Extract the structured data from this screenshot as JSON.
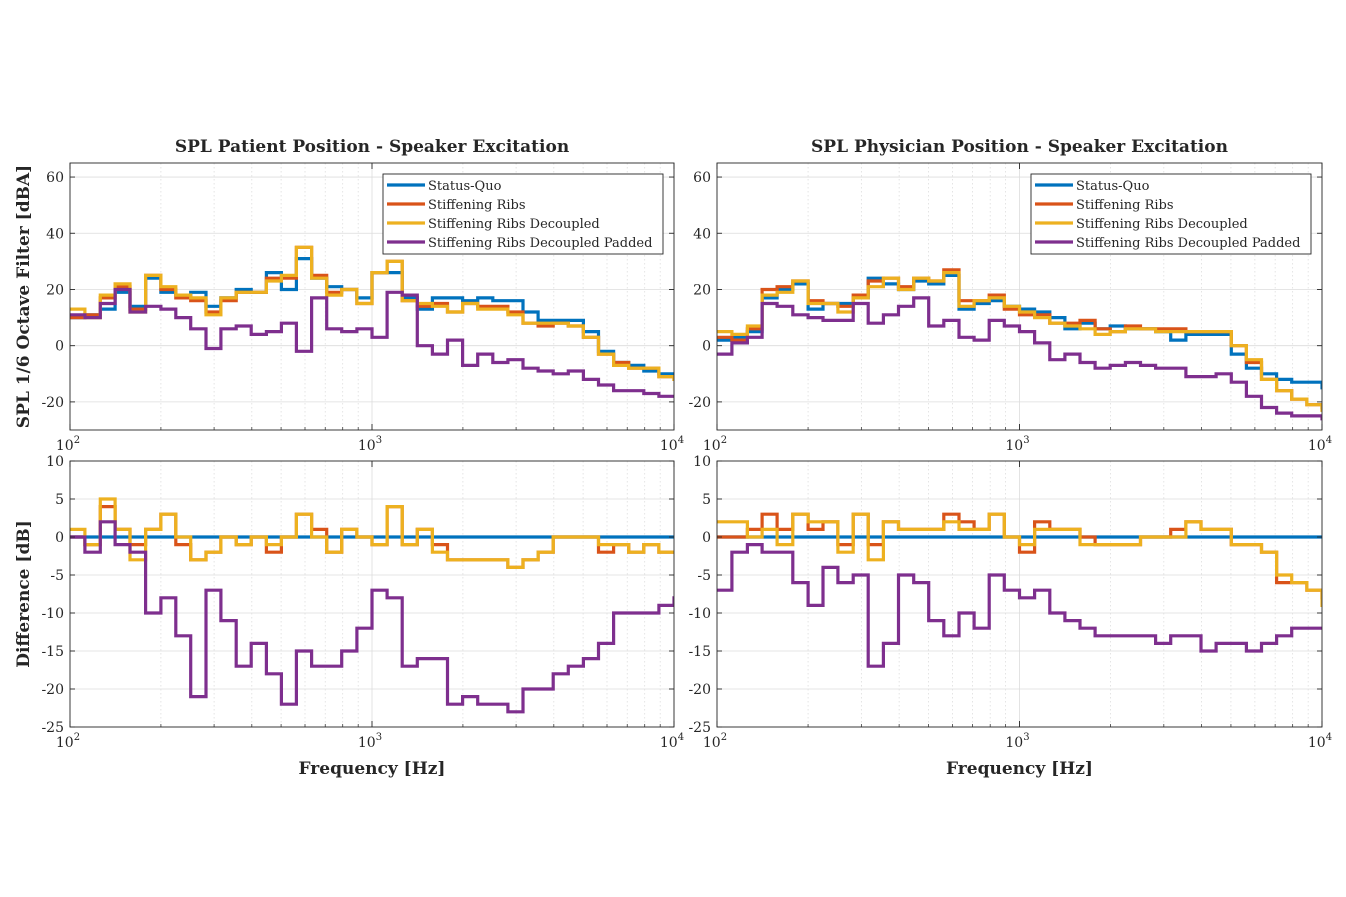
{
  "series_styles": [
    {
      "name": "Status-Quo",
      "color": "#0072BD"
    },
    {
      "name": "Stiffening Ribs",
      "color": "#D95319"
    },
    {
      "name": "Stiffening Ribs Decoupled",
      "color": "#EDB120"
    },
    {
      "name": "Stiffening Ribs Decoupled Padded",
      "color": "#7E2F8E"
    }
  ],
  "chart_data": [
    {
      "type": "line",
      "panel": "top-left",
      "title": "SPL Patient Position - Speaker Excitation",
      "xlabel": "",
      "ylabel": "SPL 1/6 Octave Filter [dBA]",
      "xscale": "log",
      "xlim": [
        100,
        10000
      ],
      "ylim": [
        -30,
        65
      ],
      "yticks": [
        -20,
        0,
        20,
        40,
        60
      ],
      "grid": true,
      "legend": "top-right",
      "x": [
        100,
        112,
        126,
        141,
        158,
        178,
        200,
        224,
        251,
        282,
        316,
        355,
        398,
        447,
        501,
        562,
        631,
        708,
        794,
        891,
        1000,
        1122,
        1259,
        1413,
        1585,
        1778,
        1995,
        2239,
        2512,
        2818,
        3162,
        3548,
        3981,
        4467,
        5012,
        5623,
        6310,
        7079,
        7943,
        8913,
        10000
      ],
      "series": [
        {
          "name": "Status-Quo",
          "values": [
            10,
            11,
            13,
            19,
            14,
            24,
            19,
            18,
            19,
            14,
            17,
            20,
            19,
            26,
            20,
            31,
            24,
            21,
            20,
            17,
            26,
            26,
            17,
            13,
            17,
            17,
            16,
            17,
            16,
            16,
            12,
            9,
            9,
            9,
            5,
            -2,
            -6,
            -7,
            -9,
            -10,
            -10
          ]
        },
        {
          "name": "Stiffening Ribs",
          "values": [
            10,
            11,
            17,
            21,
            13,
            25,
            20,
            17,
            16,
            12,
            16,
            19,
            19,
            24,
            24,
            35,
            25,
            19,
            20,
            15,
            26,
            30,
            16,
            14,
            15,
            12,
            15,
            14,
            14,
            12,
            8,
            7,
            8,
            7,
            3,
            -3,
            -6,
            -8,
            -8,
            -11,
            -12
          ]
        },
        {
          "name": "Stiffening Ribs Decoupled",
          "values": [
            13,
            10,
            18,
            22,
            12,
            25,
            21,
            18,
            17,
            11,
            17,
            19,
            19,
            23,
            25,
            35,
            24,
            18,
            20,
            15,
            26,
            30,
            16,
            15,
            14,
            12,
            15,
            13,
            13,
            11,
            8,
            8,
            8,
            7,
            3,
            -3,
            -7,
            -8,
            -8,
            -11,
            -12
          ]
        },
        {
          "name": "Stiffening Ribs Decoupled Padded",
          "values": [
            11,
            10,
            15,
            20,
            12,
            14,
            13,
            10,
            6,
            -1,
            6,
            7,
            4,
            5,
            8,
            -2,
            17,
            6,
            5,
            6,
            3,
            19,
            18,
            0,
            -3,
            2,
            -7,
            -3,
            -6,
            -5,
            -8,
            -9,
            -10,
            -9,
            -12,
            -14,
            -16,
            -16,
            -17,
            -18,
            -18
          ]
        }
      ]
    },
    {
      "type": "line",
      "panel": "top-right",
      "title": "SPL Physician Position - Speaker Excitation",
      "xlabel": "",
      "ylabel": "",
      "xscale": "log",
      "xlim": [
        100,
        10000
      ],
      "ylim": [
        -30,
        65
      ],
      "yticks": [
        -20,
        0,
        20,
        40,
        60
      ],
      "grid": true,
      "legend": "top-right",
      "x": [
        100,
        112,
        126,
        141,
        158,
        178,
        200,
        224,
        251,
        282,
        316,
        355,
        398,
        447,
        501,
        562,
        631,
        708,
        794,
        891,
        1000,
        1122,
        1259,
        1413,
        1585,
        1778,
        1995,
        2239,
        2512,
        2818,
        3162,
        3548,
        3981,
        4467,
        5012,
        5623,
        6310,
        7079,
        7943,
        8913,
        10000
      ],
      "series": [
        {
          "name": "Status-Quo",
          "values": [
            2,
            3,
            5,
            17,
            20,
            22,
            13,
            15,
            15,
            17,
            24,
            22,
            20,
            23,
            22,
            25,
            13,
            15,
            16,
            14,
            13,
            12,
            10,
            6,
            8,
            6,
            7,
            6,
            6,
            5,
            2,
            4,
            4,
            4,
            -3,
            -8,
            -10,
            -12,
            -13,
            -13,
            -15
          ]
        },
        {
          "name": "Stiffening Ribs",
          "values": [
            3,
            2,
            6,
            20,
            21,
            23,
            16,
            15,
            14,
            18,
            23,
            24,
            21,
            24,
            23,
            27,
            16,
            16,
            18,
            13,
            11,
            11,
            8,
            8,
            9,
            6,
            5,
            7,
            6,
            6,
            6,
            5,
            5,
            5,
            0,
            -6,
            -12,
            -16,
            -19,
            -21,
            -22
          ]
        },
        {
          "name": "Stiffening Ribs Decoupled",
          "values": [
            5,
            4,
            7,
            18,
            19,
            23,
            15,
            15,
            12,
            17,
            21,
            24,
            20,
            24,
            23,
            26,
            14,
            16,
            17,
            14,
            12,
            10,
            8,
            7,
            6,
            4,
            5,
            6,
            6,
            5,
            5,
            5,
            5,
            5,
            0,
            -5,
            -12,
            -16,
            -19,
            -21,
            -23
          ]
        },
        {
          "name": "Stiffening Ribs Decoupled Padded",
          "values": [
            -3,
            1,
            3,
            15,
            14,
            11,
            10,
            9,
            9,
            15,
            8,
            11,
            14,
            17,
            7,
            9,
            3,
            2,
            9,
            7,
            5,
            1,
            -5,
            -3,
            -6,
            -8,
            -7,
            -6,
            -7,
            -8,
            -8,
            -11,
            -11,
            -10,
            -13,
            -18,
            -22,
            -24,
            -25,
            -25,
            -26
          ]
        }
      ]
    },
    {
      "type": "line",
      "panel": "bottom-left",
      "title": "",
      "xlabel": "Frequency [Hz]",
      "ylabel": "Difference [dB]",
      "xscale": "log",
      "xlim": [
        100,
        10000
      ],
      "ylim": [
        -25,
        10
      ],
      "yticks": [
        -25,
        -20,
        -15,
        -10,
        -5,
        0,
        5,
        10
      ],
      "grid": true,
      "legend": "none",
      "x": [
        100,
        112,
        126,
        141,
        158,
        178,
        200,
        224,
        251,
        282,
        316,
        355,
        398,
        447,
        501,
        562,
        631,
        708,
        794,
        891,
        1000,
        1122,
        1259,
        1413,
        1585,
        1778,
        1995,
        2239,
        2512,
        2818,
        3162,
        3548,
        3981,
        4467,
        5012,
        5623,
        6310,
        7079,
        7943,
        8913,
        10000
      ],
      "series": [
        {
          "name": "Status-Quo",
          "values": [
            0,
            0,
            0,
            0,
            0,
            0,
            0,
            0,
            0,
            0,
            0,
            0,
            0,
            0,
            0,
            0,
            0,
            0,
            0,
            0,
            0,
            0,
            0,
            0,
            0,
            0,
            0,
            0,
            0,
            0,
            0,
            0,
            0,
            0,
            0,
            0,
            0,
            0,
            0,
            0,
            0
          ]
        },
        {
          "name": "Stiffening Ribs",
          "values": [
            0,
            -1,
            4,
            1,
            -1,
            1,
            3,
            -1,
            -3,
            -2,
            0,
            -1,
            0,
            -2,
            0,
            3,
            1,
            -2,
            1,
            0,
            -1,
            4,
            -1,
            1,
            -1,
            -3,
            -3,
            -3,
            -3,
            -4,
            -3,
            -2,
            0,
            0,
            0,
            -2,
            -1,
            -2,
            -1,
            -2,
            -2
          ]
        },
        {
          "name": "Stiffening Ribs Decoupled",
          "values": [
            1,
            -1,
            5,
            1,
            -3,
            1,
            3,
            0,
            -3,
            -2,
            0,
            -1,
            0,
            -1,
            0,
            3,
            0,
            -2,
            1,
            0,
            -1,
            4,
            -1,
            1,
            -2,
            -3,
            -3,
            -3,
            -3,
            -4,
            -3,
            -2,
            0,
            0,
            0,
            -1,
            -1,
            -2,
            -1,
            -2,
            -2
          ]
        },
        {
          "name": "Stiffening Ribs Decoupled Padded",
          "values": [
            0,
            -2,
            2,
            -1,
            -2,
            -10,
            -8,
            -13,
            -21,
            -7,
            -11,
            -17,
            -14,
            -18,
            -22,
            -15,
            -17,
            -17,
            -15,
            -12,
            -7,
            -8,
            -17,
            -16,
            -16,
            -22,
            -21,
            -22,
            -22,
            -23,
            -20,
            -20,
            -18,
            -17,
            -16,
            -14,
            -10,
            -10,
            -10,
            -9,
            -8
          ]
        }
      ]
    },
    {
      "type": "line",
      "panel": "bottom-right",
      "title": "",
      "xlabel": "Frequency [Hz]",
      "ylabel": "",
      "xscale": "log",
      "xlim": [
        100,
        10000
      ],
      "ylim": [
        -25,
        10
      ],
      "yticks": [
        -25,
        -20,
        -15,
        -10,
        -5,
        0,
        5,
        10
      ],
      "grid": true,
      "legend": "none",
      "x": [
        100,
        112,
        126,
        141,
        158,
        178,
        200,
        224,
        251,
        282,
        316,
        355,
        398,
        447,
        501,
        562,
        631,
        708,
        794,
        891,
        1000,
        1122,
        1259,
        1413,
        1585,
        1778,
        1995,
        2239,
        2512,
        2818,
        3162,
        3548,
        3981,
        4467,
        5012,
        5623,
        6310,
        7079,
        7943,
        8913,
        10000
      ],
      "series": [
        {
          "name": "Status-Quo",
          "values": [
            0,
            0,
            0,
            0,
            0,
            0,
            0,
            0,
            0,
            0,
            0,
            0,
            0,
            0,
            0,
            0,
            0,
            0,
            0,
            0,
            0,
            0,
            0,
            0,
            0,
            0,
            0,
            0,
            0,
            0,
            0,
            0,
            0,
            0,
            0,
            0,
            0,
            0,
            0,
            0,
            0
          ]
        },
        {
          "name": "Stiffening Ribs",
          "values": [
            0,
            0,
            1,
            3,
            1,
            3,
            1,
            2,
            -1,
            3,
            -1,
            2,
            1,
            1,
            1,
            3,
            2,
            1,
            3,
            0,
            -2,
            2,
            1,
            1,
            0,
            -1,
            -1,
            -1,
            0,
            0,
            1,
            2,
            1,
            1,
            -1,
            -1,
            -2,
            -6,
            -6,
            -7,
            -8
          ]
        },
        {
          "name": "Stiffening Ribs Decoupled",
          "values": [
            2,
            2,
            0,
            1,
            -1,
            3,
            2,
            2,
            -2,
            3,
            -3,
            2,
            1,
            1,
            1,
            2,
            1,
            1,
            3,
            0,
            -1,
            1,
            1,
            1,
            -1,
            -1,
            -1,
            -1,
            0,
            0,
            0,
            2,
            1,
            1,
            -1,
            -1,
            -2,
            -5,
            -6,
            -7,
            -9
          ]
        },
        {
          "name": "Stiffening Ribs Decoupled Padded",
          "values": [
            -7,
            -2,
            -1,
            -2,
            -2,
            -6,
            -9,
            -4,
            -6,
            -5,
            -17,
            -14,
            -5,
            -6,
            -11,
            -13,
            -10,
            -12,
            -5,
            -7,
            -8,
            -7,
            -10,
            -11,
            -12,
            -13,
            -13,
            -13,
            -13,
            -14,
            -13,
            -13,
            -15,
            -14,
            -14,
            -15,
            -14,
            -13,
            -12,
            -12,
            -12
          ]
        }
      ]
    }
  ]
}
